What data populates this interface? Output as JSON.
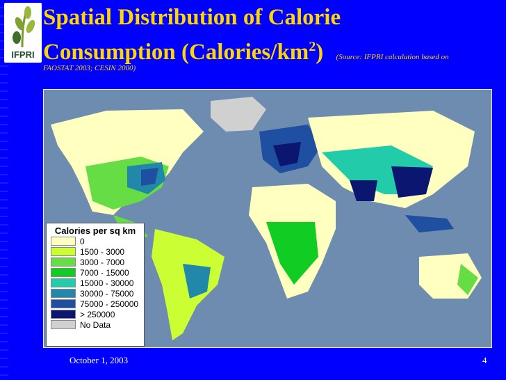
{
  "logo": {
    "text": "IFPRI"
  },
  "title": {
    "line1": "Spatial Distribution of Calorie",
    "line2_prefix": "Consumption (Calories/km",
    "line2_sup": "2",
    "line2_suffix": ")",
    "source_a": "(Source: IFPRI calculation based on",
    "source_b": "FAOSTAT 2003; CESIN 2000)"
  },
  "legend": {
    "title": "Calories per sq km",
    "items": [
      {
        "label": "0",
        "color": "#ffffc0"
      },
      {
        "label": "1500 - 3000",
        "color": "#ccff33"
      },
      {
        "label": "3000 - 7000",
        "color": "#66dd44"
      },
      {
        "label": "7000 - 15000",
        "color": "#11cc22"
      },
      {
        "label": "15000 - 30000",
        "color": "#22ccaa"
      },
      {
        "label": "30000 - 75000",
        "color": "#2288aa"
      },
      {
        "label": "75000 - 250000",
        "color": "#1f4fa0"
      },
      {
        "label": "> 250000",
        "color": "#0b1670"
      },
      {
        "label": "No Data",
        "color": "#d0d0d0"
      }
    ]
  },
  "footer": {
    "date": "October 1, 2003",
    "page": "4"
  },
  "colors": {
    "background": "#0000ff",
    "title": "#ffd700",
    "ocean": "#6e8bb0"
  }
}
